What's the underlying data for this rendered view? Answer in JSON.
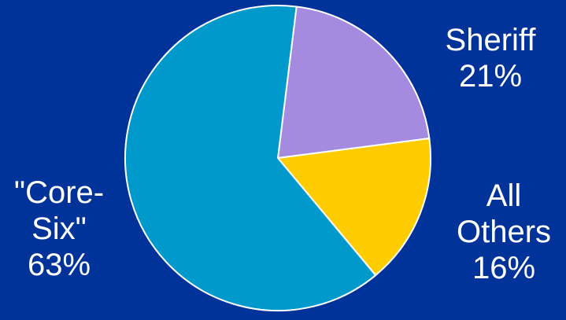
{
  "chart_data": {
    "type": "pie",
    "title": "",
    "slices": [
      {
        "name": "Sheriff",
        "value": 21,
        "label_lines": [
          "Sheriff",
          "21%"
        ],
        "color": "#a58be0"
      },
      {
        "name": "All Others",
        "value": 16,
        "label_lines": [
          "All",
          "Others",
          "16%"
        ],
        "color": "#ffcc00"
      },
      {
        "name": "\"Core-Six\"",
        "value": 63,
        "label_lines": [
          "\"Core-",
          "Six\"",
          "63%"
        ],
        "color": "#0099cc"
      }
    ],
    "legend": "none",
    "background_color": "#003399",
    "edge_color": "#ffffff"
  }
}
